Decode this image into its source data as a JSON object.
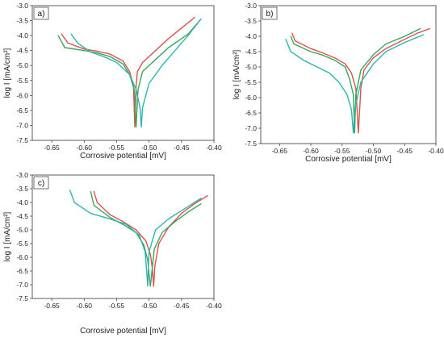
{
  "colors": {
    "red": "#d9534f",
    "green": "#3aa65a",
    "teal": "#2bb5b0"
  },
  "chart_data": [
    {
      "panel": "a)",
      "type": "line",
      "xlabel": "Corrosive potential [mV]",
      "ylabel": "log I [mA/cm²]",
      "xlim": [
        -0.68,
        -0.4
      ],
      "ylim": [
        -7.5,
        -3.0
      ],
      "xticks": [
        "-0.65",
        "-0.60",
        "-0.55",
        "-0.50",
        "-0.45",
        "-0.40"
      ],
      "yticks": [
        "-3.0",
        "-3.5",
        "-4.0",
        "-4.5",
        "-5.0",
        "-5.5",
        "-6.0",
        "-6.5",
        "-7.0",
        "-7.5"
      ],
      "series": [
        {
          "color": "red",
          "x": [
            -0.635,
            -0.625,
            -0.6,
            -0.58,
            -0.56,
            -0.54,
            -0.53,
            -0.524,
            -0.522,
            -0.52,
            -0.518,
            -0.51,
            -0.49,
            -0.47,
            -0.45,
            -0.43
          ],
          "y": [
            -3.95,
            -4.25,
            -4.45,
            -4.52,
            -4.62,
            -4.85,
            -5.2,
            -5.7,
            -7.05,
            -5.7,
            -5.2,
            -4.9,
            -4.5,
            -4.1,
            -3.75,
            -3.4
          ]
        },
        {
          "color": "green",
          "x": [
            -0.64,
            -0.63,
            -0.6,
            -0.58,
            -0.56,
            -0.54,
            -0.53,
            -0.523,
            -0.52,
            -0.517,
            -0.51,
            -0.49,
            -0.47,
            -0.44,
            -0.42
          ],
          "y": [
            -4.0,
            -4.4,
            -4.5,
            -4.58,
            -4.7,
            -4.95,
            -5.3,
            -5.8,
            -7.05,
            -5.8,
            -5.2,
            -4.8,
            -4.4,
            -3.95,
            -3.45
          ]
        },
        {
          "color": "teal",
          "x": [
            -0.62,
            -0.61,
            -0.59,
            -0.57,
            -0.55,
            -0.53,
            -0.52,
            -0.514,
            -0.512,
            -0.51,
            -0.5,
            -0.48,
            -0.46,
            -0.44,
            -0.42
          ],
          "y": [
            -3.95,
            -4.25,
            -4.55,
            -4.7,
            -4.9,
            -5.3,
            -5.8,
            -6.4,
            -7.05,
            -6.4,
            -5.6,
            -5.0,
            -4.5,
            -4.0,
            -3.45
          ]
        }
      ]
    },
    {
      "panel": "b)",
      "type": "line",
      "xlabel": "Corrosive potential [mV]",
      "ylabel": "log I [mA/cm²]",
      "xlim": [
        -0.68,
        -0.4
      ],
      "ylim": [
        -7.5,
        -3.0
      ],
      "xticks": [
        "-0.65",
        "-0.60",
        "-0.55",
        "-0.50",
        "-0.45",
        "-0.40"
      ],
      "yticks": [
        "-3.0",
        "-3.5",
        "-4.0",
        "-4.5",
        "-5.0",
        "-5.5",
        "-6.0",
        "-6.5",
        "-7.0",
        "-7.5"
      ],
      "series": [
        {
          "color": "red",
          "x": [
            -0.63,
            -0.625,
            -0.6,
            -0.58,
            -0.56,
            -0.545,
            -0.535,
            -0.528,
            -0.524,
            -0.52,
            -0.515,
            -0.5,
            -0.48,
            -0.45,
            -0.43,
            -0.41
          ],
          "y": [
            -3.9,
            -4.15,
            -4.4,
            -4.55,
            -4.72,
            -4.9,
            -5.2,
            -5.7,
            -7.15,
            -5.7,
            -5.1,
            -4.7,
            -4.4,
            -4.1,
            -3.9,
            -3.75
          ]
        },
        {
          "color": "green",
          "x": [
            -0.632,
            -0.627,
            -0.6,
            -0.58,
            -0.56,
            -0.545,
            -0.538,
            -0.532,
            -0.53,
            -0.528,
            -0.52,
            -0.5,
            -0.48,
            -0.45,
            -0.425
          ],
          "y": [
            -4.0,
            -4.25,
            -4.5,
            -4.62,
            -4.8,
            -5.0,
            -5.4,
            -5.9,
            -7.15,
            -5.9,
            -5.1,
            -4.6,
            -4.25,
            -4.0,
            -3.75
          ]
        },
        {
          "color": "teal",
          "x": [
            -0.64,
            -0.632,
            -0.61,
            -0.59,
            -0.57,
            -0.555,
            -0.542,
            -0.535,
            -0.532,
            -0.529,
            -0.52,
            -0.5,
            -0.48,
            -0.45,
            -0.42
          ],
          "y": [
            -4.1,
            -4.5,
            -4.8,
            -5.0,
            -5.2,
            -5.5,
            -5.9,
            -6.4,
            -7.15,
            -6.3,
            -5.5,
            -4.9,
            -4.5,
            -4.2,
            -3.95
          ]
        }
      ]
    },
    {
      "panel": "c)",
      "type": "line",
      "xlabel": "Corrosive potential [mV]",
      "ylabel": "log I [mA/cm²]",
      "xlim": [
        -0.68,
        -0.4
      ],
      "ylim": [
        -7.5,
        -3.0
      ],
      "xticks": [
        "-0.65",
        "-0.60",
        "-0.55",
        "-0.50",
        "-0.45",
        "-0.40"
      ],
      "yticks": [
        "-3.0",
        "-3.5",
        "-4.0",
        "-4.5",
        "-5.0",
        "-5.5",
        "-6.0",
        "-6.5",
        "-7.0",
        "-7.5"
      ],
      "series": [
        {
          "color": "red",
          "x": [
            -0.585,
            -0.58,
            -0.56,
            -0.54,
            -0.52,
            -0.505,
            -0.498,
            -0.495,
            -0.493,
            -0.491,
            -0.485,
            -0.47,
            -0.45,
            -0.43,
            -0.41
          ],
          "y": [
            -3.6,
            -4.0,
            -4.45,
            -4.7,
            -5.0,
            -5.4,
            -5.9,
            -6.4,
            -7.05,
            -6.3,
            -5.5,
            -4.9,
            -4.4,
            -4.05,
            -3.75
          ]
        },
        {
          "color": "green",
          "x": [
            -0.59,
            -0.585,
            -0.56,
            -0.54,
            -0.52,
            -0.508,
            -0.502,
            -0.5,
            -0.498,
            -0.492,
            -0.48,
            -0.46,
            -0.44,
            -0.42
          ],
          "y": [
            -3.6,
            -4.1,
            -4.55,
            -4.8,
            -5.1,
            -5.55,
            -6.1,
            -6.6,
            -7.05,
            -5.7,
            -5.1,
            -4.7,
            -4.35,
            -4.05
          ]
        },
        {
          "color": "teal",
          "x": [
            -0.622,
            -0.615,
            -0.59,
            -0.56,
            -0.535,
            -0.515,
            -0.506,
            -0.504,
            -0.502,
            -0.5,
            -0.49,
            -0.47,
            -0.45,
            -0.43,
            -0.42
          ],
          "y": [
            -3.55,
            -4.0,
            -4.4,
            -4.6,
            -4.8,
            -5.2,
            -5.8,
            -6.4,
            -7.05,
            -5.8,
            -5.0,
            -4.6,
            -4.3,
            -4.0,
            -3.85
          ]
        }
      ]
    }
  ]
}
